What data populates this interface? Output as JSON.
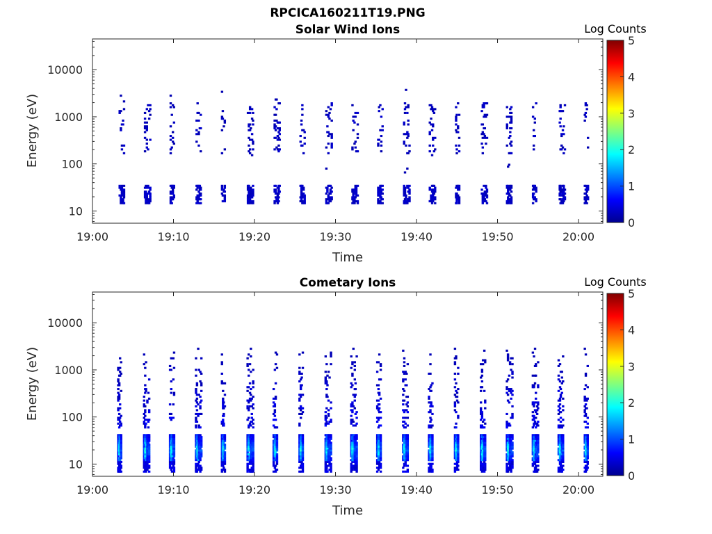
{
  "figure_title": "RPCICA160211T19.PNG",
  "chart_data": [
    {
      "type": "heatmap",
      "title": "Solar Wind Ions",
      "xlabel": "Time",
      "ylabel": "Energy (eV)",
      "x_ticks": [
        "19:00",
        "19:10",
        "19:20",
        "19:30",
        "19:40",
        "19:50",
        "20:00"
      ],
      "x_range": [
        "19:00",
        "20:03"
      ],
      "y_ticks": [
        "10",
        "100",
        "1000",
        "10000"
      ],
      "y_scale": "log",
      "y_range": [
        5.5,
        45000
      ],
      "colorbar": {
        "label": "Log Counts",
        "min": 0,
        "max": 5,
        "ticks": [
          "0",
          "1",
          "2",
          "3",
          "4",
          "5"
        ]
      },
      "scan_start_minutes": [
        3.2,
        6.3,
        9.5,
        12.7,
        15.8,
        19.0,
        22.3,
        25.5,
        28.7,
        31.9,
        35.1,
        38.3,
        41.5,
        44.7,
        47.9,
        51.0,
        54.2,
        57.5,
        60.6
      ],
      "low_band_eV": [
        14,
        35
      ],
      "high_band_eV": [
        150,
        2000
      ],
      "peak_log_counts": 0.4
    },
    {
      "type": "heatmap",
      "title": "Cometary Ions",
      "xlabel": "Time",
      "ylabel": "Energy (eV)",
      "x_ticks": [
        "19:00",
        "19:10",
        "19:20",
        "19:30",
        "19:40",
        "19:50",
        "20:00"
      ],
      "x_range": [
        "19:00",
        "20:03"
      ],
      "y_ticks": [
        "10",
        "100",
        "1000",
        "10000"
      ],
      "y_scale": "log",
      "y_range": [
        5.5,
        45000
      ],
      "colorbar": {
        "label": "Log Counts",
        "min": 0,
        "max": 5,
        "ticks": [
          "0",
          "1",
          "2",
          "3",
          "4",
          "5"
        ]
      },
      "scan_start_minutes": [
        3.0,
        6.2,
        9.4,
        12.6,
        15.8,
        19.0,
        22.2,
        25.4,
        28.6,
        31.8,
        35.0,
        38.2,
        41.4,
        44.6,
        47.8,
        51.0,
        54.2,
        57.4,
        60.6
      ],
      "core_band_eV": [
        12,
        45
      ],
      "core_peak_eV": 20,
      "core_peak_log_counts": 2.0,
      "high_tail_eV": [
        60,
        3000
      ],
      "peak_log_counts": 2.0
    }
  ]
}
